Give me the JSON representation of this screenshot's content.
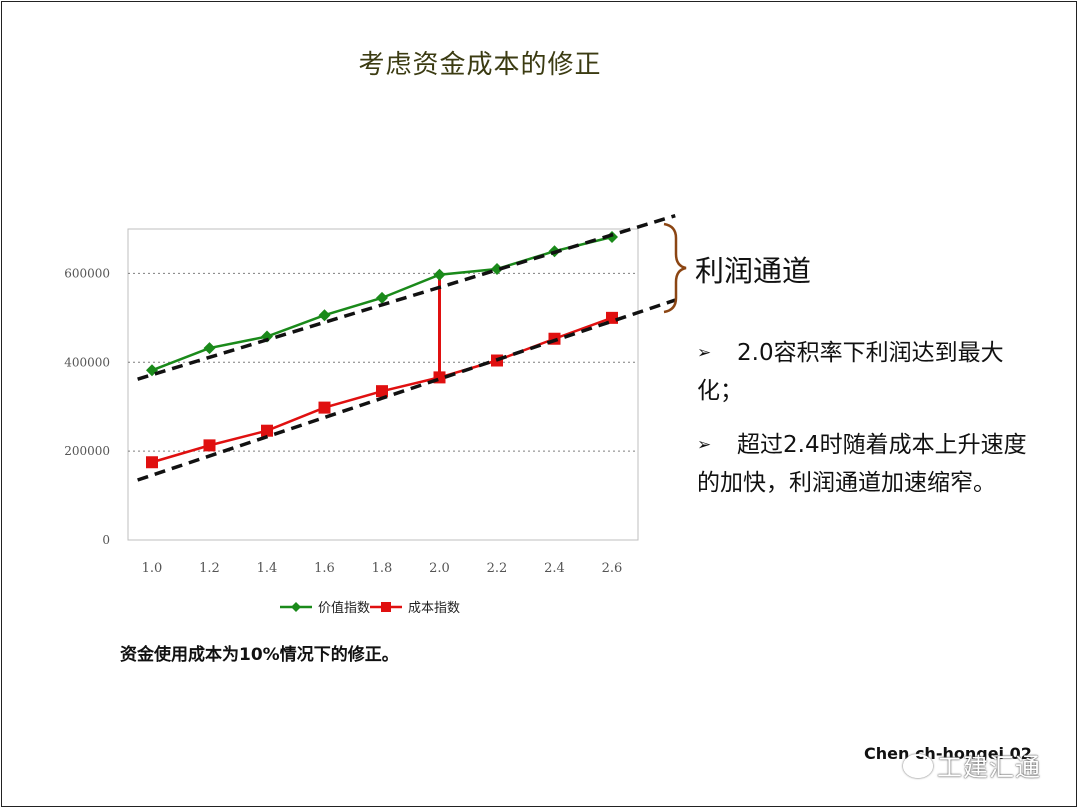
{
  "slide": {
    "title": "考虑资金成本的修正",
    "callout_label": "利润通道",
    "bullets": [
      {
        "marker": "➢",
        "text": "2.0容积率下利润达到最大化；"
      },
      {
        "marker": "➢",
        "text": "超过2.4时随着成本上升速度的加快，利润通道加速缩窄。"
      }
    ],
    "caption": "资金使用成本为10%情况下的修正。",
    "footer": "Chen ch-hongei 02",
    "watermark": "工建汇通"
  },
  "chart_data": {
    "type": "line",
    "x": [
      1.0,
      1.2,
      1.4,
      1.6,
      1.8,
      2.0,
      2.2,
      2.4,
      2.6
    ],
    "x_tick_labels": [
      "1.0",
      "1.2",
      "1.4",
      "1.6",
      "1.8",
      "2.0",
      "2.2",
      "2.4",
      "2.6"
    ],
    "y_tick_labels": [
      "0",
      "200000",
      "400000",
      "600000"
    ],
    "ylim": [
      0,
      700000
    ],
    "y_ticks": [
      0,
      200000,
      400000,
      600000
    ],
    "grid": "horizontal dotted",
    "legend_position": "bottom",
    "series": [
      {
        "name": "价值指数",
        "color": "#1a8a1a",
        "marker": "diamond",
        "values": [
          382000,
          432000,
          458000,
          506000,
          545000,
          597000,
          610000,
          650000,
          682000
        ]
      },
      {
        "name": "成本指数",
        "color": "#e01010",
        "marker": "square",
        "values": [
          175000,
          213000,
          246000,
          298000,
          335000,
          366000,
          404000,
          453000,
          500000
        ]
      }
    ],
    "annotations": {
      "trend_lines": [
        {
          "style": "black dashed",
          "x": [
            0.95,
            2.82
          ],
          "y": [
            362000,
            730000
          ]
        },
        {
          "style": "black dashed",
          "x": [
            0.95,
            2.82
          ],
          "y": [
            135000,
            540000
          ]
        }
      ],
      "gap_marker": {
        "x": 2.0,
        "from": 366000,
        "to": 597000,
        "color": "#e01010"
      }
    }
  }
}
